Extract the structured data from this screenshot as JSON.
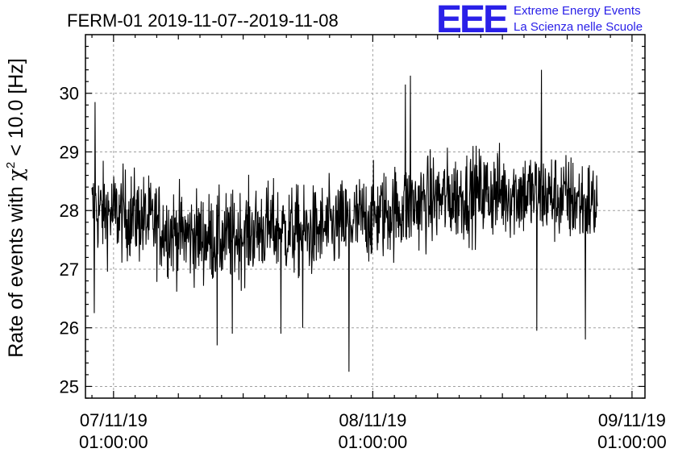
{
  "chart_data": {
    "type": "line",
    "title": "FERM-01 2019-11-07--2019-11-08",
    "ylabel_prefix": "Rate of events with ",
    "ylabel_chi": "χ",
    "ylabel_exp": "2",
    "ylabel_suffix": " < 10.0 [Hz]",
    "xlabel": "",
    "ylim": [
      24.8,
      31.0
    ],
    "yticks": [
      25,
      26,
      27,
      28,
      29,
      30
    ],
    "xlim_hours": [
      -2.6,
      49.2
    ],
    "xticks": [
      {
        "hour": 0,
        "date": "07/11/19",
        "time": "01:00:00"
      },
      {
        "hour": 24,
        "date": "08/11/19",
        "time": "01:00:00"
      },
      {
        "hour": 48,
        "date": "09/11/19",
        "time": "01:00:00"
      }
    ],
    "minor_xtick_step_hours": 2,
    "data_range_hours": [
      -2.0,
      44.8
    ],
    "trend": [
      {
        "hour": -2.0,
        "value": 28.0
      },
      {
        "hour": 2.0,
        "value": 27.9
      },
      {
        "hour": 6.0,
        "value": 27.6
      },
      {
        "hour": 10.0,
        "value": 27.5
      },
      {
        "hour": 14.0,
        "value": 27.7
      },
      {
        "hour": 18.0,
        "value": 27.6
      },
      {
        "hour": 22.0,
        "value": 27.8
      },
      {
        "hour": 26.0,
        "value": 28.0
      },
      {
        "hour": 30.0,
        "value": 28.2
      },
      {
        "hour": 34.0,
        "value": 28.3
      },
      {
        "hour": 38.0,
        "value": 28.3
      },
      {
        "hour": 42.0,
        "value": 28.2
      },
      {
        "hour": 44.8,
        "value": 28.1
      }
    ],
    "spikes": [
      {
        "hour": -1.7,
        "value": 29.85
      },
      {
        "hour": -1.8,
        "value": 26.25
      },
      {
        "hour": 11.0,
        "value": 25.9
      },
      {
        "hour": 9.6,
        "value": 25.7
      },
      {
        "hour": 21.8,
        "value": 25.25
      },
      {
        "hour": 27.5,
        "value": 30.3
      },
      {
        "hour": 27.0,
        "value": 30.15
      },
      {
        "hour": 39.6,
        "value": 30.4
      },
      {
        "hour": 39.2,
        "value": 25.95
      },
      {
        "hour": 43.7,
        "value": 25.8
      },
      {
        "hour": 15.5,
        "value": 25.9
      },
      {
        "hour": 17.5,
        "value": 26.0
      }
    ],
    "noise_amplitude": 0.55,
    "grid": true,
    "line_color": "#000000"
  },
  "logo": {
    "text": "EEE",
    "line1": "Extreme Energy Events",
    "line2": "La Scienza nelle Scuole",
    "color": "#2a20e8"
  }
}
